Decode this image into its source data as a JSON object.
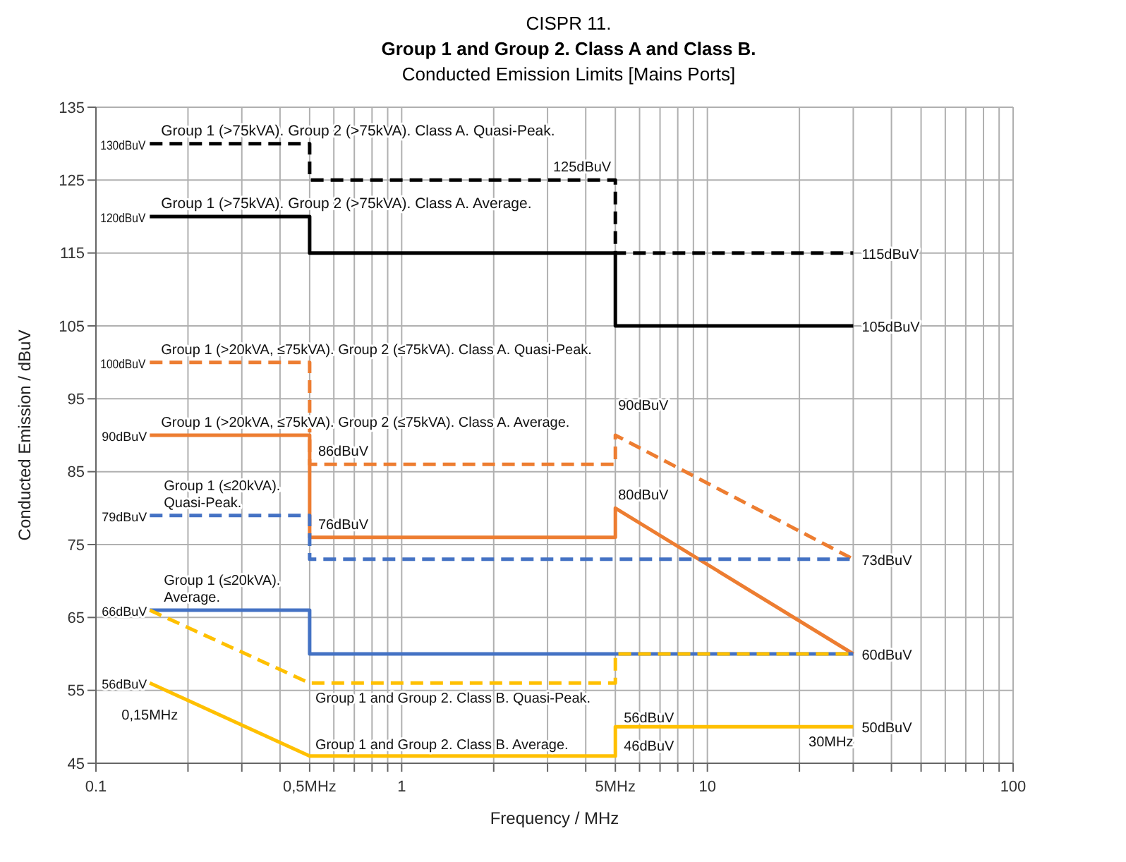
{
  "chart_data": {
    "type": "line",
    "title": "CISPR 11.",
    "subtitle": "Group 1 and Group 2. Class A and Class B.\nConducted Emission Limits [Mains Ports]",
    "xlabel": "Frequency / MHz",
    "ylabel": "Conducted Emission / dBuV",
    "log": "x",
    "grid": true,
    "xlim": [
      0.1,
      100
    ],
    "ylim": [
      45,
      135
    ],
    "xticks": [
      0.1,
      {
        "value": 0.2,
        "label": null
      },
      {
        "value": 0.3,
        "label": null
      },
      {
        "value": 0.4,
        "label": null
      },
      {
        "value": 0.5,
        "label": "0,5MHz"
      },
      {
        "value": 0.6,
        "label": null
      },
      {
        "value": 0.7,
        "label": null
      },
      {
        "value": 0.8,
        "label": null
      },
      {
        "value": 0.9,
        "label": null
      },
      1,
      {
        "value": 2,
        "label": null
      },
      {
        "value": 3,
        "label": null
      },
      {
        "value": 4,
        "label": null
      },
      {
        "value": 5,
        "label": "5MHz"
      },
      {
        "value": 6,
        "label": null
      },
      {
        "value": 7,
        "label": null
      },
      {
        "value": 8,
        "label": null
      },
      {
        "value": 9,
        "label": null
      },
      10,
      {
        "value": 20,
        "label": null
      },
      {
        "value": 30,
        "label": null
      },
      {
        "value": 40,
        "label": null
      },
      {
        "value": 50,
        "label": null
      },
      {
        "value": 60,
        "label": null
      },
      {
        "value": 70,
        "label": null
      },
      {
        "value": 80,
        "label": null
      },
      {
        "value": 90,
        "label": null
      },
      100
    ],
    "yticks": [
      45,
      55,
      65,
      75,
      85,
      95,
      105,
      115,
      125,
      135
    ],
    "series": [
      {
        "color": "#000000",
        "line_style": "dashed",
        "x": [
          0.15,
          0.5,
          0.5,
          5,
          5,
          30
        ],
        "values": [
          130,
          130,
          125,
          125,
          115,
          115
        ]
      },
      {
        "color": "#000000",
        "line_style": "solid",
        "x": [
          0.15,
          0.5,
          0.5,
          5,
          5,
          30
        ],
        "values": [
          120,
          120,
          115,
          115,
          105,
          105
        ]
      },
      {
        "color": "#ed7d31",
        "line_style": "dashed",
        "x": [
          0.15,
          0.5,
          0.5,
          5,
          5,
          30
        ],
        "values": [
          100,
          100,
          86,
          86,
          90,
          73
        ]
      },
      {
        "color": "#ed7d31",
        "line_style": "solid",
        "x": [
          0.15,
          0.5,
          0.5,
          5,
          5,
          30
        ],
        "values": [
          90,
          90,
          76,
          76,
          80,
          60
        ]
      },
      {
        "color": "#4472c4",
        "line_style": "dashed",
        "x": [
          0.15,
          0.5,
          0.5,
          30
        ],
        "values": [
          79,
          79,
          73,
          73
        ]
      },
      {
        "color": "#4472c4",
        "line_style": "solid",
        "x": [
          0.15,
          0.5,
          0.5,
          30
        ],
        "values": [
          66,
          66,
          60,
          60
        ]
      },
      {
        "color": "#ffc000",
        "line_style": "dashed",
        "x": [
          0.15,
          0.5,
          5,
          5,
          30
        ],
        "values": [
          66,
          56,
          56,
          60,
          60
        ]
      },
      {
        "color": "#ffc000",
        "line_style": "solid",
        "x": [
          0.15,
          0.5,
          5,
          5,
          30
        ],
        "values": [
          56,
          46,
          46,
          50,
          50
        ]
      }
    ],
    "annotations": [
      {
        "text": "Group 1 (>75kVA). Group 2 (>75kVA). Class A. Quasi-Peak.",
        "x": 0.15,
        "y": 130
      },
      {
        "text": "130dBuV",
        "x": 0.15,
        "y": 130
      },
      {
        "text": "125dBuV",
        "x": 5,
        "y": 125
      },
      {
        "text": "115dBuV",
        "x": 30,
        "y": 115
      },
      {
        "text": "Group 1 (>75kVA). Group 2 (>75kVA). Class A. Average.",
        "x": 0.15,
        "y": 120
      },
      {
        "text": "120dBuV",
        "x": 0.15,
        "y": 120
      },
      {
        "text": "105dBuV",
        "x": 30,
        "y": 105
      },
      {
        "text": "Group 1 (>20kVA, ≤75kVA). Group 2 (≤75kVA). Class A. Quasi-Peak.",
        "x": 0.15,
        "y": 100
      },
      {
        "text": "100dBuV",
        "x": 0.15,
        "y": 100
      },
      {
        "text": "Group 1 (>20kVA, ≤75kVA). Group 2 (≤75kVA). Class A. Average.",
        "x": 0.15,
        "y": 90
      },
      {
        "text": "90dBuV",
        "x": 0.15,
        "y": 90
      },
      {
        "text": "90dBuV",
        "x": 5,
        "y": 90
      },
      {
        "text": "86dBuV",
        "x": 0.5,
        "y": 86
      },
      {
        "text": "Group 1 (≤20kVA). Quasi-Peak.",
        "x": 0.15,
        "y": 79
      },
      {
        "text": "79dBuV",
        "x": 0.15,
        "y": 79
      },
      {
        "text": "76dBuV",
        "x": 0.5,
        "y": 76
      },
      {
        "text": "80dBuV",
        "x": 5,
        "y": 80
      },
      {
        "text": "73dBuV",
        "x": 30,
        "y": 73
      },
      {
        "text": "Group 1 (≤20kVA). Average.",
        "x": 0.15,
        "y": 66
      },
      {
        "text": "66dBuV",
        "x": 0.15,
        "y": 66
      },
      {
        "text": "60dBuV",
        "x": 30,
        "y": 60
      },
      {
        "text": "56dBuV",
        "x": 0.15,
        "y": 56
      },
      {
        "text": "0,15MHz",
        "x": 0.15,
        "y": 56
      },
      {
        "text": "Group 1 and Group 2. Class B. Quasi-Peak.",
        "x": 0.5,
        "y": 56
      },
      {
        "text": "56dBuV",
        "x": 5,
        "y": 56
      },
      {
        "text": "Group 1 and Group 2. Class B. Average.",
        "x": 0.5,
        "y": 46
      },
      {
        "text": "46dBuV",
        "x": 5,
        "y": 46
      },
      {
        "text": "50dBuV",
        "x": 30,
        "y": 50
      },
      {
        "text": "30MHz",
        "x": 30,
        "y": 50
      }
    ]
  }
}
